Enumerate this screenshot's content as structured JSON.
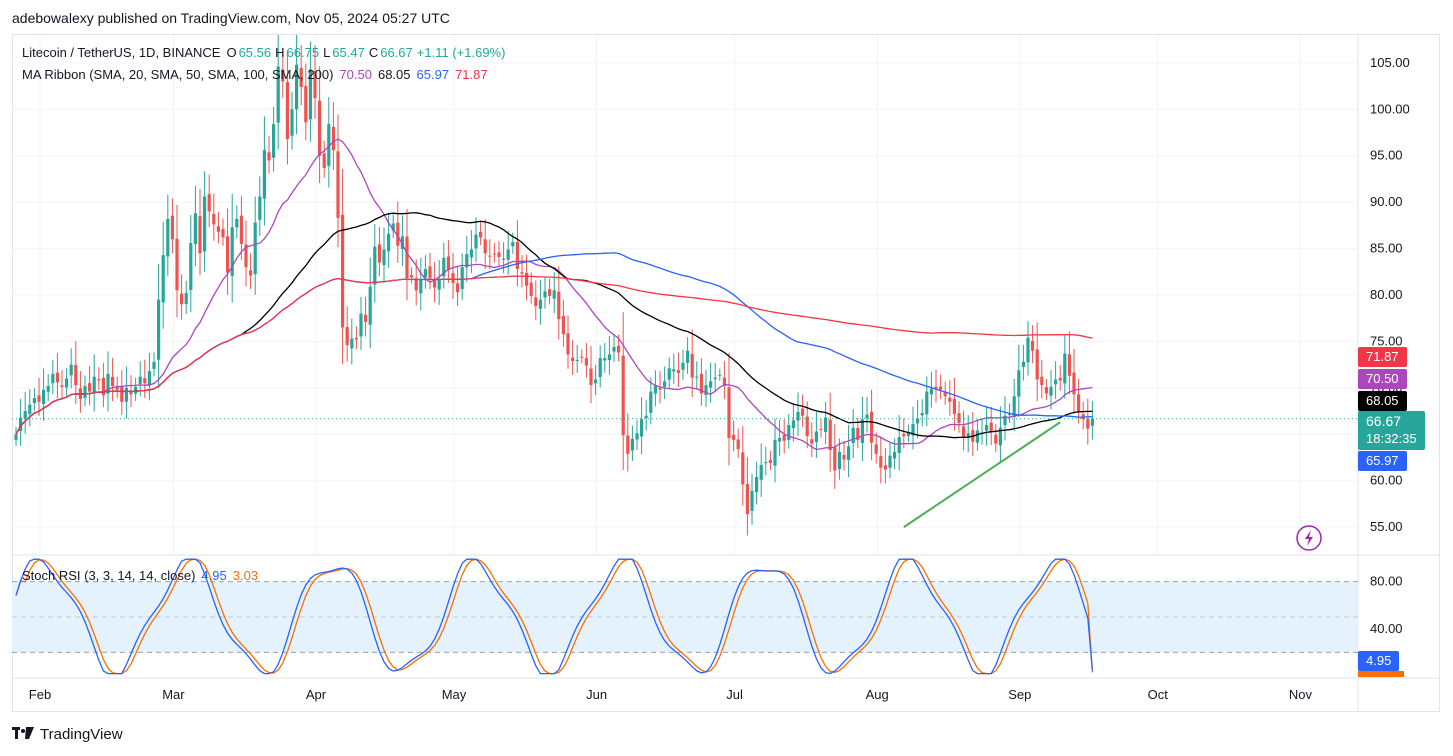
{
  "header": {
    "published": "adebowalexy published on TradingView.com, Nov 05, 2024 05:27 UTC"
  },
  "legend": {
    "symbol": "Litecoin / TetherUS, 1D, BINANCE",
    "o_label": "O",
    "o_value": "65.56",
    "h_label": "H",
    "h_value": "66.75",
    "l_label": "L",
    "l_value": "65.47",
    "c_label": "C",
    "c_value": "66.67",
    "change": "+1.11 (+1.69%)",
    "ma_title": "MA Ribbon (SMA, 20, SMA, 50, SMA, 100, SMA, 200)",
    "ma_values": [
      "70.50",
      "68.05",
      "65.97",
      "71.87"
    ],
    "rsi_title": "Stoch RSI (3, 3, 14, 14, close)",
    "rsi_k": "4.95",
    "rsi_d": "3.03"
  },
  "badges": {
    "sma200": "71.87",
    "sma20": "70.50",
    "sma50": "68.05",
    "price": "66.67",
    "countdown": "18:32:35",
    "sma100": "65.97",
    "rsi": "4.95"
  },
  "colors": {
    "up": "#26a69a",
    "down": "#ef5350",
    "sma20": "#ab47bc",
    "sma50": "#000000",
    "sma100": "#2962ff",
    "sma200": "#f23645",
    "trend": "#4caf50",
    "rsi_k": "#2962ff",
    "rsi_d": "#ff6d00",
    "rsi_band": "#e3f2fd"
  },
  "footer": {
    "brand": "TradingView"
  },
  "chart_data": {
    "type": "candlestick",
    "title": "Litecoin / TetherUS, 1D, BINANCE",
    "x_ticks": [
      "Feb",
      "Mar",
      "Apr",
      "May",
      "Jun",
      "Jul",
      "Aug",
      "Sep",
      "Oct",
      "Nov"
    ],
    "y_ticks": [
      "55.00",
      "60.00",
      "65.00",
      "70.00",
      "75.00",
      "80.00",
      "85.00",
      "90.00",
      "95.00",
      "100.00",
      "105.00"
    ],
    "ylim": [
      52,
      108
    ],
    "last_close": 66.67,
    "closes": [
      65.0,
      66.8,
      67.5,
      68.2,
      68.9,
      68.5,
      69.8,
      70.2,
      71.5,
      70.6,
      70.1,
      71.0,
      72.5,
      70.3,
      68.8,
      70.2,
      69.6,
      71.2,
      70.8,
      69.2,
      71.5,
      70.2,
      69.8,
      68.5,
      70.0,
      69.3,
      70.1,
      71.2,
      70.5,
      71.8,
      72.8,
      79.5,
      84.3,
      88.2,
      86.0,
      80.5,
      79.0,
      80.2,
      85.6,
      88.8,
      84.5,
      90.6,
      89.0,
      87.6,
      86.8,
      86.2,
      82.4,
      87.3,
      88.2,
      85.5,
      83.0,
      82.1,
      87.8,
      90.6,
      95.6,
      94.5,
      98.4,
      104.6,
      103.0,
      96.8,
      100.0,
      104.8,
      102.4,
      98.6,
      104.3,
      101.2,
      95.0,
      93.7,
      98.4,
      95.6,
      88.3,
      76.5,
      74.6,
      75.3,
      75.2,
      78.0,
      77.1,
      80.9,
      85.2,
      83.5,
      84.9,
      86.6,
      87.7,
      85.3,
      86.3,
      81.8,
      81.9,
      80.5,
      81.7,
      82.8,
      81.8,
      80.8,
      81.7,
      84.0,
      82.7,
      81.3,
      80.3,
      83.0,
      84.4,
      84.9,
      86.5,
      86.2,
      84.5,
      84.2,
      84.4,
      84.1,
      83.9,
      84.9,
      85.7,
      82.8,
      82.3,
      81.0,
      79.9,
      78.8,
      79.5,
      80.4,
      79.9,
      80.5,
      77.4,
      75.8,
      73.6,
      72.9,
      73.0,
      73.3,
      72.4,
      70.3,
      70.9,
      73.2,
      73.2,
      73.6,
      74.4,
      73.8,
      64.9,
      62.9,
      64.5,
      65.1,
      66.6,
      67.0,
      69.6,
      70.2,
      69.8,
      70.7,
      72.1,
      72.0,
      71.6,
      72.7,
      74.0,
      71.1,
      71.2,
      69.4,
      70.3,
      70.7,
      71.1,
      71.4,
      70.2,
      64.6,
      64.4,
      63.4,
      59.6,
      56.4,
      58.9,
      60.4,
      61.7,
      62.0,
      61.9,
      64.4,
      64.6,
      64.3,
      66.0,
      66.5,
      67.4,
      67.0,
      64.8,
      64.0,
      65.3,
      65.5,
      66.8,
      63.3,
      61.1,
      63.1,
      62.3,
      63.7,
      65.7,
      64.4,
      66.6,
      67.1,
      64.1,
      62.9,
      61.4,
      61.2,
      62.7,
      63.1,
      64.7,
      64.8,
      65.2,
      66.1,
      66.7,
      67.3,
      69.6,
      69.9,
      69.9,
      69.8,
      69.1,
      68.5,
      67.2,
      66.2,
      64.6,
      65.1,
      64.2,
      65.4,
      65.2,
      66.0,
      65.2,
      64.0,
      65.7,
      67.0,
      67.2,
      69.1,
      71.9,
      72.8,
      75.4,
      74.0,
      70.9,
      70.3,
      69.4,
      70.1,
      70.9,
      70.8,
      73.7,
      71.3,
      69.3,
      67.5,
      66.6,
      65.6,
      66.7
    ],
    "series": [
      {
        "name": "SMA 20",
        "last": 70.5
      },
      {
        "name": "SMA 50",
        "last": 68.05
      },
      {
        "name": "SMA 100",
        "last": 65.97
      },
      {
        "name": "SMA 200",
        "last": 71.87
      }
    ],
    "trendline": {
      "from": 55.0,
      "to": 66.3
    },
    "rsi": {
      "title": "Stoch RSI (3, 3, 14, 14, close)",
      "ylim": [
        0,
        100
      ],
      "y_ticks": [
        "40.00",
        "80.00"
      ],
      "band": [
        20,
        80
      ],
      "k_last": 4.95,
      "d_last": 3.03
    }
  }
}
